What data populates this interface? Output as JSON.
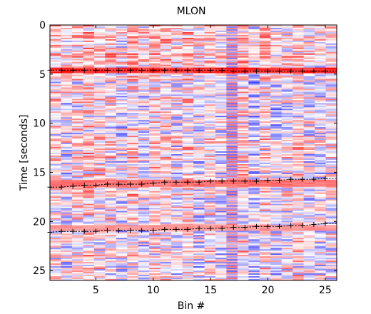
{
  "chart_data": {
    "type": "heatmap",
    "title": "MLON",
    "xlabel": "Bin #",
    "ylabel": "Time [seconds]",
    "xlim": [
      1,
      26
    ],
    "ylim": [
      26,
      0
    ],
    "x_ticks": [
      "5",
      "10",
      "15",
      "20",
      "25"
    ],
    "y_ticks": [
      "0",
      "5",
      "10",
      "15",
      "20",
      "25"
    ],
    "y_reversed": true,
    "colormap": "blue-white-red diverging",
    "colors": {
      "negative": "#0000ff",
      "neutral": "#ffffff",
      "positive": "#ff0000"
    },
    "rows": 180,
    "bins": 26,
    "annotation_marker": "+",
    "marker_tracks": [
      {
        "name": "",
        "y_values": [
          4.6,
          4.6,
          4.6,
          4.6,
          4.6,
          4.6,
          4.6,
          4.6,
          4.6,
          4.6,
          4.6,
          4.6,
          4.6,
          4.6,
          4.6,
          4.6,
          4.7,
          4.7,
          4.7,
          4.7,
          4.7,
          4.7,
          4.7,
          4.7,
          4.7
        ]
      },
      {
        "name": "",
        "y_values": [
          16.5,
          16.5,
          16.4,
          16.3,
          16.3,
          16.2,
          16.2,
          16.2,
          16.2,
          16.1,
          16.0,
          16.0,
          16.0,
          16.0,
          15.9,
          15.9,
          15.9,
          15.9,
          15.9,
          15.8,
          15.8,
          15.7,
          15.7,
          15.7,
          15.6
        ]
      },
      {
        "name": "",
        "y_values": [
          21.1,
          21.0,
          21.0,
          21.0,
          21.0,
          20.9,
          20.9,
          20.9,
          20.9,
          20.9,
          20.8,
          20.8,
          20.8,
          20.7,
          20.7,
          20.7,
          20.6,
          20.6,
          20.5,
          20.5,
          20.5,
          20.4,
          20.4,
          20.3,
          20.2
        ]
      }
    ],
    "highlight_bands": [
      {
        "y_range": [
          4.4,
          4.9
        ],
        "sign": "positive",
        "strength": 0.9
      },
      {
        "y_range": [
          15.8,
          16.4
        ],
        "sign": "positive",
        "strength": 0.6
      },
      {
        "y_range": [
          20.4,
          21.0
        ],
        "sign": "positive",
        "strength": 0.45
      }
    ]
  }
}
